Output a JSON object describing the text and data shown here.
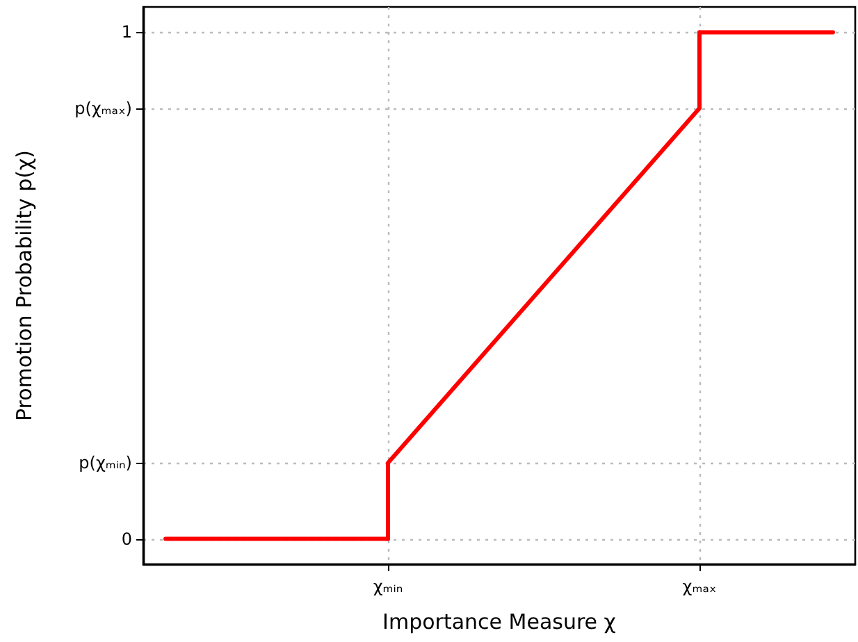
{
  "chart_data": {
    "type": "line",
    "xlabel": "Importance Measure χ",
    "ylabel": "Promotion Probability p(χ)",
    "categories": [
      null,
      null,
      null,
      null,
      null,
      null,
      null,
      null,
      null,
      null,
      null,
      "χₘᵢₙ",
      null,
      null,
      null,
      null,
      null,
      null,
      null,
      null,
      null,
      null,
      null,
      null,
      null,
      "χₘₐₓ",
      null,
      null,
      null,
      null,
      null,
      null,
      null
    ],
    "series": [
      {
        "color": "#ff0000",
        "values": [
          null,
          0,
          0,
          0,
          0,
          0,
          0,
          0,
          0,
          0,
          0,
          0,
          null,
          null,
          null,
          null,
          null,
          null,
          null,
          null,
          null,
          null,
          null,
          null,
          null,
          null,
          null,
          null,
          null,
          null,
          null,
          null,
          null
        ]
      },
      {
        "color": "#ff0000",
        "x": [
          "χₘᵢₙ",
          "χₘᵢₙ",
          "χₘₐₓ",
          "χₘₐₓ"
        ],
        "values": [
          0,
          0.15,
          0.85,
          1
        ]
      },
      {
        "color": "#ff0000",
        "values": [
          null,
          null,
          null,
          null,
          null,
          null,
          null,
          null,
          null,
          null,
          null,
          null,
          null,
          null,
          null,
          null,
          null,
          null,
          null,
          null,
          null,
          null,
          null,
          null,
          null,
          1,
          1,
          1,
          1,
          1,
          1,
          1,
          null
        ]
      }
    ],
    "ylim": [
      -0.05,
      1.05
    ],
    "yticks": [
      0,
      {
        "value": 0.15,
        "label": "p(χₘᵢₙ)"
      },
      {
        "value": 0.85,
        "label": "p(χₘₐₓ)"
      },
      1
    ],
    "grid": true,
    "marker": "none",
    "line_style": "solid"
  }
}
